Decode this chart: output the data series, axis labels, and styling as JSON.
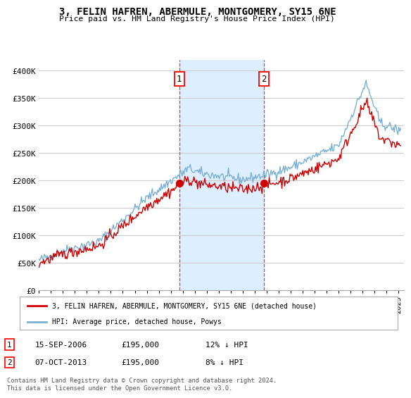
{
  "title": "3, FELIN HAFREN, ABERMULE, MONTGOMERY, SY15 6NE",
  "subtitle": "Price paid vs. HM Land Registry's House Price Index (HPI)",
  "ylabel_ticks": [
    "£0",
    "£50K",
    "£100K",
    "£150K",
    "£200K",
    "£250K",
    "£300K",
    "£350K",
    "£400K"
  ],
  "ytick_values": [
    0,
    50000,
    100000,
    150000,
    200000,
    250000,
    300000,
    350000,
    400000
  ],
  "ylim": [
    0,
    420000
  ],
  "xlim_start": 1995.0,
  "xlim_end": 2025.5,
  "transaction1": {
    "date_num": 2006.71,
    "price": 195000,
    "label": "1",
    "date_str": "15-SEP-2006",
    "pct": "12%"
  },
  "transaction2": {
    "date_num": 2013.77,
    "price": 195000,
    "label": "2",
    "date_str": "07-OCT-2013",
    "pct": "8%"
  },
  "hpi_color": "#7ab0d4",
  "price_color": "#cc0000",
  "shade_color": "#ddeeff",
  "grid_color": "#cccccc",
  "background_color": "#ffffff",
  "legend_label_price": "3, FELIN HAFREN, ABERMULE, MONTGOMERY, SY15 6NE (detached house)",
  "legend_label_hpi": "HPI: Average price, detached house, Powys",
  "footnote": "Contains HM Land Registry data © Crown copyright and database right 2024.\nThis data is licensed under the Open Government Licence v3.0.",
  "annotation1_date": "15-SEP-2006",
  "annotation1_price": "£195,000",
  "annotation1_pct": "12% ↓ HPI",
  "annotation2_date": "07-OCT-2013",
  "annotation2_price": "£195,000",
  "annotation2_pct": "8% ↓ HPI"
}
